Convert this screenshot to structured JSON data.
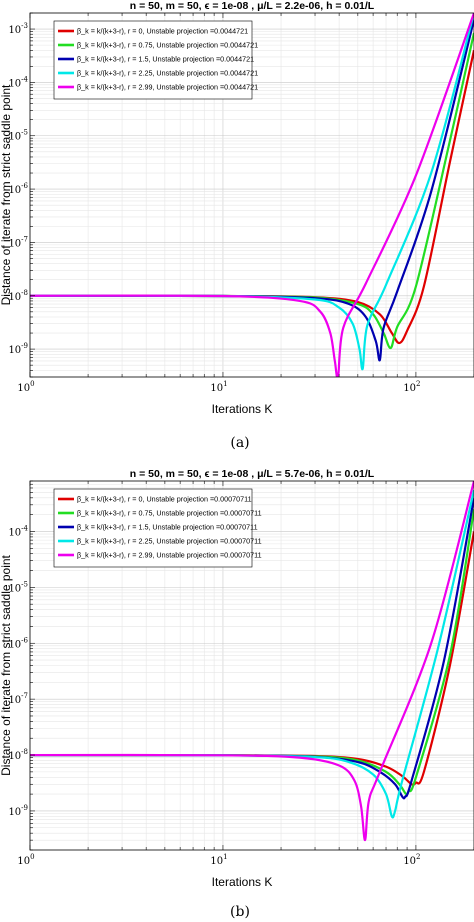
{
  "chart_data": [
    {
      "type": "line",
      "title": "n = 50, m = 50, ϵ = 1e-08 , μ/L = 2.2e-06, h = 0.01/L",
      "xlabel": "Iterations K",
      "ylabel": "Distance of iterate from strict saddle point",
      "xscale": "log",
      "yscale": "log",
      "xlim": [
        1,
        200
      ],
      "ylim": [
        3e-10,
        0.002
      ],
      "xticks": [
        {
          "v": 1,
          "b": "10",
          "e": "0"
        },
        {
          "v": 10,
          "b": "10",
          "e": "1"
        },
        {
          "v": 100,
          "b": "10",
          "e": "2"
        }
      ],
      "yticks": [
        {
          "v": 1e-09,
          "b": "10",
          "e": "-9"
        },
        {
          "v": 1e-08,
          "b": "10",
          "e": "-8"
        },
        {
          "v": 1e-07,
          "b": "10",
          "e": "-7"
        },
        {
          "v": 1e-06,
          "b": "10",
          "e": "-6"
        },
        {
          "v": 1e-05,
          "b": "10",
          "e": "-5"
        },
        {
          "v": 0.0001,
          "b": "10",
          "e": "-4"
        },
        {
          "v": 0.001,
          "b": "10",
          "e": "-3"
        }
      ],
      "grid": true,
      "legend_position": "top-left",
      "caption": "(a)",
      "series": [
        {
          "name": "β_k = k/(k+3-r), r =   0, Unstable projection =0.0044721",
          "color": "#e00000",
          "x": [
            1,
            10,
            30,
            50,
            65,
            75,
            82,
            90,
            110,
            150,
            200
          ],
          "y": [
            1e-08,
            9.9e-09,
            9.4e-09,
            7.6e-09,
            4.5e-09,
            2e-09,
            1.3e-09,
            2.2e-09,
            1.5e-08,
            3.2e-06,
            0.0004
          ]
        },
        {
          "name": "β_k = k/(k+3-r), r = 0.75, Unstable projection =0.0044721",
          "color": "#22dd22",
          "x": [
            1,
            10,
            30,
            50,
            60,
            68,
            74,
            80,
            100,
            150,
            200
          ],
          "y": [
            1e-08,
            9.9e-09,
            9.3e-09,
            7e-09,
            4.5e-09,
            2e-09,
            1.05e-09,
            2.6e-09,
            1.5e-08,
            8e-06,
            0.00085
          ]
        },
        {
          "name": "β_k = k/(k+3-r), r = 1.5, Unstable projection =0.0044721",
          "color": "#0000b0",
          "x": [
            1,
            10,
            30,
            45,
            55,
            62,
            65,
            68,
            80,
            120,
            200
          ],
          "y": [
            1e-08,
            9.9e-09,
            9e-09,
            7e-09,
            4e-09,
            1.4e-09,
            6.2e-10,
            2.5e-09,
            1.2e-08,
            9e-07,
            0.0015
          ]
        },
        {
          "name": "β_k = k/(k+3-r), r = 2.25, Unstable projection =0.0044721",
          "color": "#00e8e8",
          "x": [
            1,
            10,
            30,
            40,
            47,
            51,
            53,
            56,
            70,
            120,
            200
          ],
          "y": [
            1e-08,
            9.9e-09,
            8.5e-09,
            6e-09,
            3e-09,
            1e-09,
            4.3e-10,
            2.8e-09,
            1.6e-08,
            2e-06,
            0.002
          ]
        },
        {
          "name": "β_k = k/(k+3-r), r = 2.99, Unstable projection =0.0044721",
          "color": "#ee00ee",
          "x": [
            1,
            10,
            25,
            32,
            36,
            38,
            39.5,
            42,
            55,
            100,
            200
          ],
          "y": [
            1e-08,
            9.9e-09,
            8e-09,
            5e-09,
            2e-09,
            6e-10,
            3e-10,
            2.5e-09,
            1.7e-08,
            1.8e-06,
            0.002
          ]
        }
      ]
    },
    {
      "type": "line",
      "title": "n = 50, m = 50, ϵ = 1e-08 , μ/L = 5.7e-06, h = 0.01/L",
      "xlabel": "Iterations K",
      "ylabel": "Distance of iterate from strict saddle point",
      "xscale": "log",
      "yscale": "log",
      "xlim": [
        1,
        200
      ],
      "ylim": [
        2e-10,
        0.0008
      ],
      "xticks": [
        {
          "v": 1,
          "b": "10",
          "e": "0"
        },
        {
          "v": 10,
          "b": "10",
          "e": "1"
        },
        {
          "v": 100,
          "b": "10",
          "e": "2"
        }
      ],
      "yticks": [
        {
          "v": 1e-09,
          "b": "10",
          "e": "-9"
        },
        {
          "v": 1e-08,
          "b": "10",
          "e": "-8"
        },
        {
          "v": 1e-07,
          "b": "10",
          "e": "-7"
        },
        {
          "v": 1e-06,
          "b": "10",
          "e": "-6"
        },
        {
          "v": 1e-05,
          "b": "10",
          "e": "-5"
        },
        {
          "v": 0.0001,
          "b": "10",
          "e": "-4"
        }
      ],
      "grid": true,
      "legend_position": "top-left",
      "caption": "(b)",
      "series": [
        {
          "name": "β_k = k/(k+3-r), r =   0, Unstable projection =0.00070711",
          "color": "#e00000",
          "x": [
            1,
            10,
            30,
            50,
            70,
            85,
            95,
            100,
            110,
            150,
            200
          ],
          "y": [
            1e-08,
            9.9e-09,
            9.6e-09,
            8.5e-09,
            6.2e-09,
            4.2e-09,
            3e-09,
            3.2e-09,
            5e-09,
            4e-07,
            0.0001
          ]
        },
        {
          "name": "β_k = k/(k+3-r), r = 0.75, Unstable projection =0.00070711",
          "color": "#22dd22",
          "x": [
            1,
            10,
            30,
            50,
            70,
            82,
            89,
            92,
            100,
            150,
            200
          ],
          "y": [
            1e-08,
            9.9e-09,
            9.5e-09,
            8e-09,
            5e-09,
            3e-09,
            2e-09,
            2.3e-09,
            4e-09,
            6e-07,
            0.00025
          ]
        },
        {
          "name": "β_k = k/(k+3-r), r = 1.5, Unstable projection =0.00070711",
          "color": "#0000b0",
          "x": [
            1,
            10,
            30,
            50,
            65,
            78,
            85,
            88,
            95,
            140,
            200
          ],
          "y": [
            1e-08,
            9.9e-09,
            9.3e-09,
            7.5e-09,
            5e-09,
            3e-09,
            1.8e-09,
            1.8e-09,
            3.5e-09,
            5e-07,
            0.0004
          ]
        },
        {
          "name": "β_k = k/(k+3-r), r = 2.25, Unstable projection =0.00070711",
          "color": "#00e8e8",
          "x": [
            1,
            10,
            30,
            45,
            60,
            70,
            75,
            78,
            85,
            130,
            200
          ],
          "y": [
            1e-08,
            9.9e-09,
            9.2e-09,
            7.5e-09,
            4.5e-09,
            2e-09,
            8e-10,
            1e-09,
            3.5e-09,
            8e-07,
            0.00055
          ]
        },
        {
          "name": "β_k = k/(k+3-r), r = 2.99, Unstable projection =0.00070711",
          "color": "#ee00ee",
          "x": [
            1,
            10,
            25,
            40,
            48,
            52,
            54.5,
            57,
            65,
            120,
            200
          ],
          "y": [
            1e-08,
            9.9e-09,
            9e-09,
            6.5e-09,
            3.5e-09,
            1.2e-09,
            3e-10,
            1.5e-09,
            5e-09,
            1e-06,
            0.0008
          ]
        }
      ]
    }
  ]
}
